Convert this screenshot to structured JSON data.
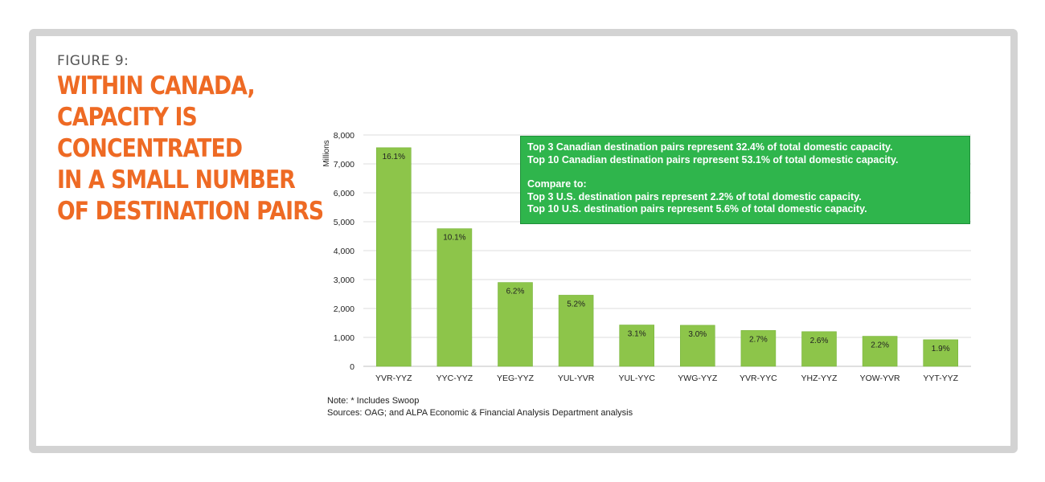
{
  "figure_label": "FIGURE 9:",
  "headline": [
    "WITHIN CANADA,",
    "CAPACITY IS",
    "CONCENTRATED",
    "IN A SMALL NUMBER",
    "OF DESTINATION PAIRS"
  ],
  "callout": {
    "line1": "Top 3 Canadian destination pairs represent 32.4% of total domestic capacity.",
    "line2": "Top 10 Canadian destination pairs represent 53.1% of total domestic capacity.",
    "line3": "Compare to:",
    "line4": "Top 3 U.S. destination pairs represent 2.2% of total domestic capacity.",
    "line5": "Top 10 U.S. destination pairs represent 5.6% of total domestic capacity."
  },
  "notes": {
    "note": "Note: * Includes Swoop",
    "sources": "Sources: OAG; and ALPA Economic & Financial Analysis Department analysis"
  },
  "colors": {
    "accent": "#ee6a24",
    "bar": "#8dc54a",
    "callout": "#2fb54c",
    "frame": "#d3d3d3"
  },
  "chart_data": {
    "type": "bar",
    "ylabel": "Millions",
    "ylim": [
      0,
      8000
    ],
    "yticks": [
      0,
      1000,
      2000,
      3000,
      4000,
      5000,
      6000,
      7000,
      8000
    ],
    "ytick_labels": [
      "0",
      "1,000",
      "2,000",
      "3,000",
      "4,000",
      "5,000",
      "6,000",
      "7,000",
      "8,000"
    ],
    "grid": true,
    "categories": [
      "YVR-YYZ",
      "YYC-YYZ",
      "YEG-YYZ",
      "YUL-YVR",
      "YUL-YYC",
      "YWG-YYZ",
      "YVR-YYC",
      "YHZ-YYZ",
      "YOW-YVR",
      "YYT-YYZ"
    ],
    "values": [
      7560,
      4760,
      2900,
      2460,
      1430,
      1420,
      1240,
      1200,
      1040,
      920
    ],
    "data_labels": [
      "16.1%",
      "10.1%",
      "6.2%",
      "5.2%",
      "3.1%",
      "3.0%",
      "2.7%",
      "2.6%",
      "2.2%",
      "1.9%"
    ]
  }
}
